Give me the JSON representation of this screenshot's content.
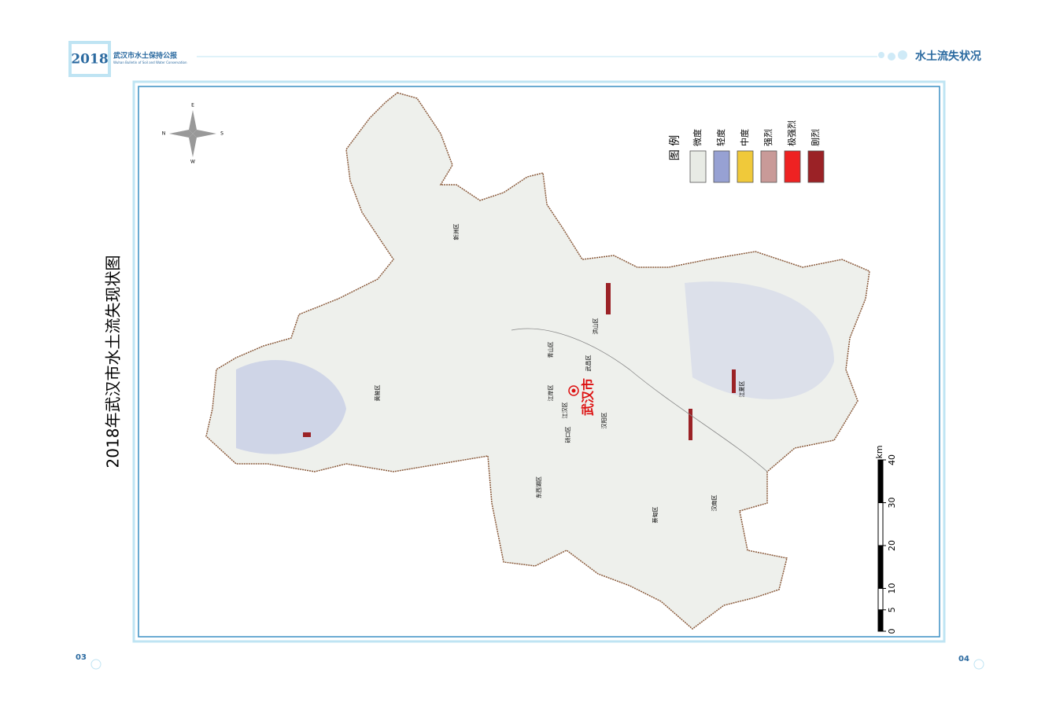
{
  "header": {
    "year": "2018",
    "title": "武汉市水土保持公报",
    "subtitle": "Wuhan Bulletin of Soil and Water Conservation",
    "section": "水土流失状况"
  },
  "map": {
    "title": "2018年武汉市水土流失现状图",
    "city": "武汉市",
    "districts": [
      "新洲区",
      "黄陂区",
      "洪山区",
      "青山区",
      "武昌区",
      "江岸区",
      "江汉区",
      "汉阳区",
      "硚口区",
      "东西湖区",
      "蔡甸区",
      "汉南区",
      "江夏区"
    ],
    "legend": {
      "title": "图 例",
      "items": [
        {
          "label": "微度",
          "color": "#e8ebe5"
        },
        {
          "label": "轻度",
          "color": "#97a1d3"
        },
        {
          "label": "中度",
          "color": "#f0c93a"
        },
        {
          "label": "强烈",
          "color": "#c99a98"
        },
        {
          "label": "极强烈",
          "color": "#ee2222"
        },
        {
          "label": "剧烈",
          "color": "#9b2226"
        }
      ]
    },
    "scale": {
      "unit": "km",
      "ticks": [
        0,
        5,
        10,
        20,
        30,
        40
      ]
    },
    "compass": [
      "N",
      "E",
      "S",
      "W"
    ]
  },
  "pages": [
    "03",
    "04"
  ]
}
